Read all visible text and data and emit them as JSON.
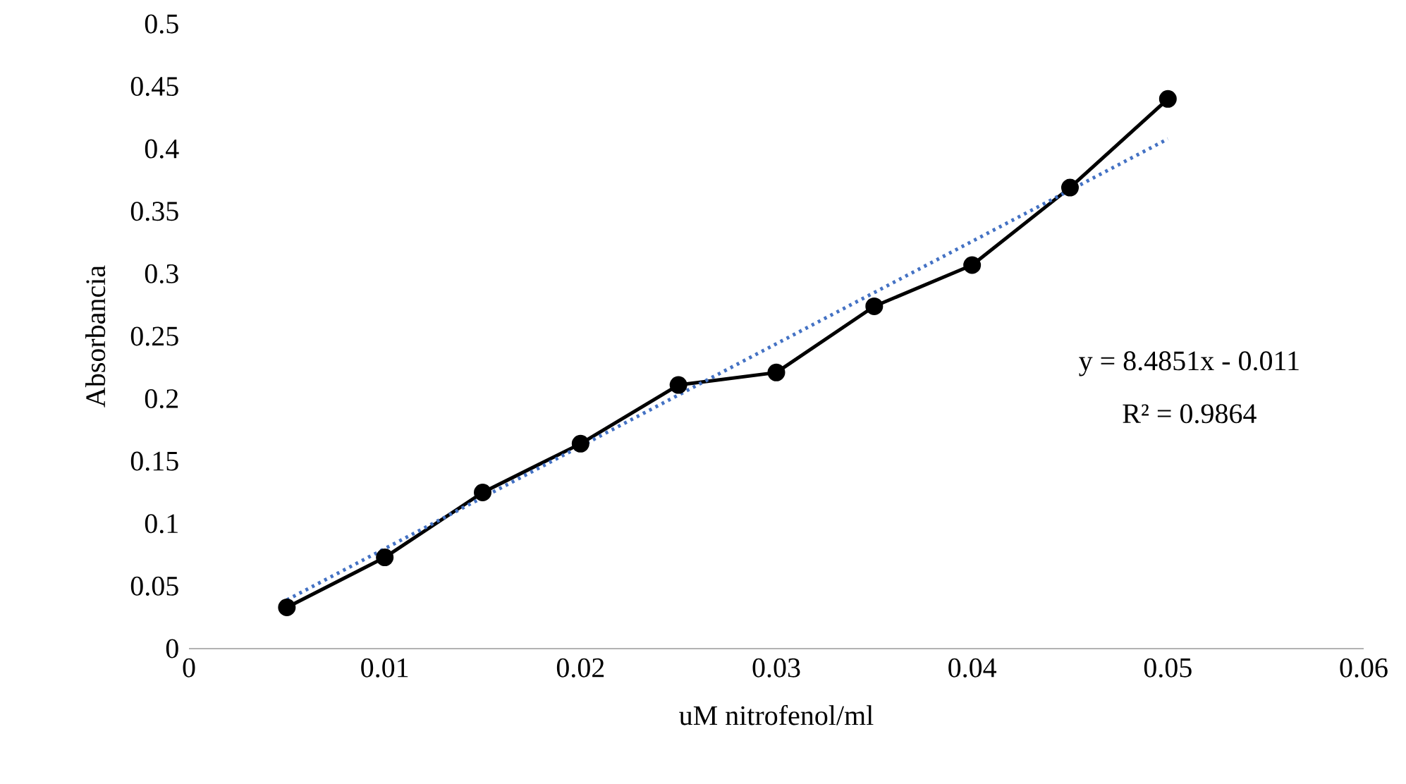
{
  "chart_data": {
    "type": "line",
    "xlabel": "uM nitrofenol/ml",
    "ylabel": "Absorbancia",
    "x": [
      0.005,
      0.01,
      0.015,
      0.02,
      0.025,
      0.03,
      0.035,
      0.04,
      0.045,
      0.05
    ],
    "series": [
      {
        "color": "#000000",
        "marker": "circle",
        "line_style": "solid",
        "values": [
          0.033,
          0.073,
          0.125,
          0.164,
          0.211,
          0.221,
          0.274,
          0.307,
          0.369,
          0.44
        ]
      },
      {
        "type": "line",
        "color": "#4472c4",
        "marker": "none",
        "line_style": "dotted",
        "x": [
          0.005,
          0.05
        ],
        "values": [
          0.039,
          0.408
        ]
      }
    ],
    "xlim": [
      0,
      0.06
    ],
    "xticks": [
      0,
      0.01,
      0.02,
      0.03,
      0.04,
      0.05,
      0.06
    ],
    "ylim": [
      0,
      0.5
    ],
    "yticks": [
      0,
      0.05,
      0.1,
      0.15,
      0.2,
      0.25,
      0.3,
      0.35,
      0.4,
      0.45,
      0.5
    ],
    "grid": false,
    "annotations": [
      "y = 8.4851x - 0.011",
      "R² = 0.9864"
    ]
  }
}
